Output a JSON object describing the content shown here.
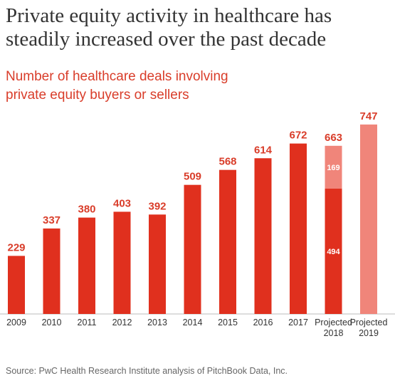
{
  "chart_data": {
    "type": "bar",
    "stacked": true,
    "title": "Private equity activity in healthcare has steadily increased over the past decade",
    "subtitle": "Number of healthcare deals involving private equity buyers or sellers",
    "categories": [
      "2009",
      "2010",
      "2011",
      "2012",
      "2013",
      "2014",
      "2015",
      "2016",
      "2017",
      "Projected 2018",
      "Projected 2019"
    ],
    "series": [
      {
        "color": "#e0301e",
        "values": [
          229,
          337,
          380,
          403,
          392,
          509,
          568,
          614,
          672,
          494,
          null
        ]
      },
      {
        "color": "#f0857a",
        "values": [
          null,
          null,
          null,
          null,
          null,
          null,
          null,
          null,
          null,
          169,
          747
        ]
      }
    ],
    "totals": [
      null,
      null,
      null,
      null,
      null,
      null,
      null,
      null,
      null,
      663,
      null
    ],
    "ylim": [
      0,
      800
    ],
    "grid": false,
    "source": "Source: PwC Health Research Institute analysis of PitchBook Data, Inc."
  }
}
